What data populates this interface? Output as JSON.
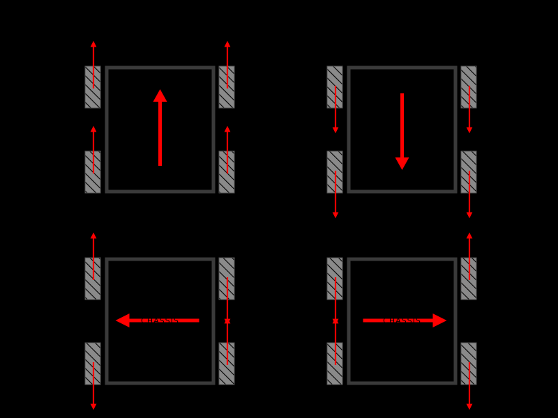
{
  "colors": {
    "background": "#000000",
    "chassis_stroke": "#3a3a3a",
    "wheel_fill": "#8a8a8a",
    "wheel_hatch": "#000000",
    "force_arrow": "#ff0000"
  },
  "diagrams": [
    {
      "id": "forward",
      "chassis_motion": "up",
      "chassis_label": "",
      "wheels": {
        "front_left": "up",
        "front_right": "up",
        "rear_left": "up",
        "rear_right": "up"
      }
    },
    {
      "id": "backward",
      "chassis_motion": "down",
      "chassis_label": "",
      "wheels": {
        "front_left": "down",
        "front_right": "down",
        "rear_left": "down",
        "rear_right": "down"
      }
    },
    {
      "id": "strafe-left",
      "chassis_motion": "left",
      "chassis_label": "CHASSIS",
      "wheels": {
        "front_left": "up",
        "front_right": "down",
        "rear_left": "down",
        "rear_right": "up"
      }
    },
    {
      "id": "strafe-right",
      "chassis_motion": "right",
      "chassis_label": "CHASSIS",
      "wheels": {
        "front_left": "down",
        "front_right": "up",
        "rear_left": "up",
        "rear_right": "down"
      }
    }
  ]
}
